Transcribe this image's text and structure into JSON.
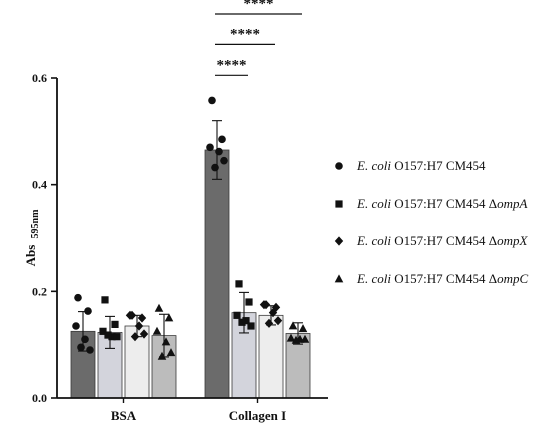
{
  "chart_data": {
    "type": "bar",
    "ylabel": "Abs",
    "ylabel_sub": "595nm",
    "ylim": [
      0,
      0.6
    ],
    "yticks": [
      "0.0",
      "0.2",
      "0.4",
      "0.6"
    ],
    "grid": false,
    "legend_position": "right",
    "categories": [
      "BSA",
      "Collagen I"
    ],
    "series": [
      {
        "legend": [
          {
            "text": "E. coli",
            "italic": true
          },
          {
            "text": " O157:H7 CM454",
            "italic": false
          }
        ],
        "marker": "circle",
        "color": "#6b6b6b",
        "values": [
          0.125,
          0.465
        ],
        "errors": [
          0.037,
          0.055
        ],
        "points": [
          [
            0.188,
            0.163,
            0.135,
            0.11,
            0.09,
            0.095
          ],
          [
            0.558,
            0.485,
            0.47,
            0.462,
            0.445,
            0.432
          ]
        ]
      },
      {
        "legend": [
          {
            "text": "E. coli",
            "italic": true
          },
          {
            "text": " O157:H7 CM454 Δ",
            "italic": false
          },
          {
            "text": "ompA",
            "italic": true
          }
        ],
        "marker": "square",
        "color": "#d3d4dc",
        "values": [
          0.123,
          0.16
        ],
        "errors": [
          0.03,
          0.038
        ],
        "points": [
          [
            0.184,
            0.138,
            0.125,
            0.115,
            0.115,
            0.118
          ],
          [
            0.214,
            0.18,
            0.155,
            0.145,
            0.135,
            0.142
          ]
        ]
      },
      {
        "legend": [
          {
            "text": "E. coli",
            "italic": true
          },
          {
            "text": " O157:H7 CM454 Δ",
            "italic": false
          },
          {
            "text": "ompX",
            "italic": true
          }
        ],
        "marker": "diamond",
        "color": "#ededed",
        "values": [
          0.135,
          0.155
        ],
        "errors": [
          0.02,
          0.018
        ],
        "points": [
          [
            0.155,
            0.15,
            0.155,
            0.135,
            0.12,
            0.115
          ],
          [
            0.175,
            0.17,
            0.175,
            0.16,
            0.145,
            0.14
          ]
        ]
      },
      {
        "legend": [
          {
            "text": "E. coli",
            "italic": true
          },
          {
            "text": " O157:H7 CM454 Δ",
            "italic": false
          },
          {
            "text": "ompC",
            "italic": true
          }
        ],
        "marker": "triangle",
        "color": "#bcbcbc",
        "values": [
          0.117,
          0.121
        ],
        "errors": [
          0.04,
          0.02
        ],
        "points": [
          [
            0.168,
            0.15,
            0.125,
            0.105,
            0.085,
            0.078
          ],
          [
            0.135,
            0.13,
            0.112,
            0.11,
            0.11,
            0.108
          ]
        ]
      }
    ],
    "significance": [
      {
        "text": "****",
        "group": 1,
        "from": 0,
        "to": 1,
        "y": 0.605
      },
      {
        "text": "****",
        "group": 1,
        "from": 0,
        "to": 2,
        "y": 0.663
      },
      {
        "text": "****",
        "group": 1,
        "from": 0,
        "to": 3,
        "y": 0.72
      }
    ]
  }
}
